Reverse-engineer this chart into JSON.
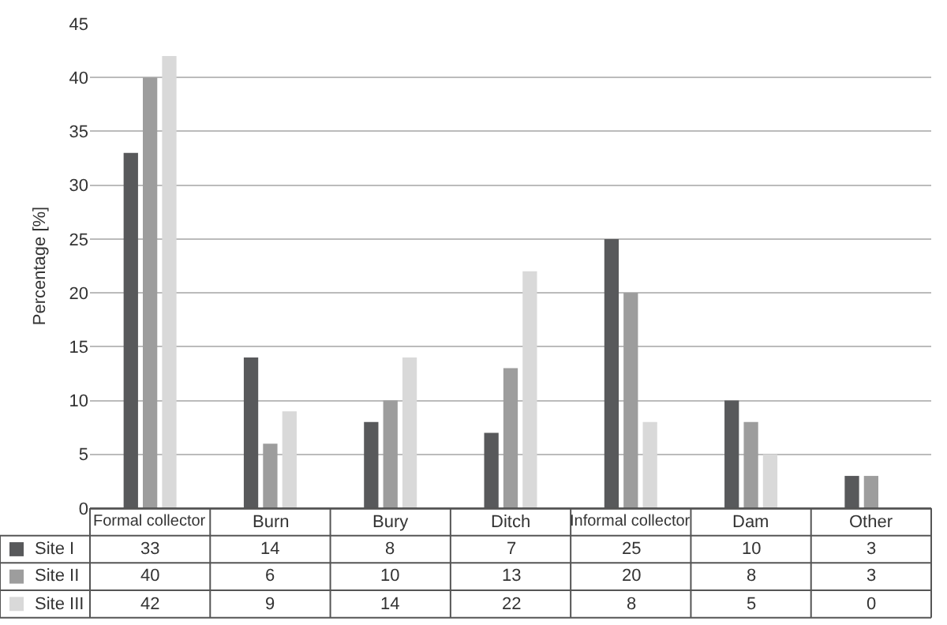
{
  "chart_data": {
    "type": "bar",
    "ylabel": "Percentage [%]",
    "categories": [
      "Formal collector",
      "Burn",
      "Bury",
      "Ditch",
      "Informal collector",
      "Dam",
      "Other"
    ],
    "series": [
      {
        "name": "Site I",
        "color": "#58595b",
        "values": [
          33,
          14,
          8,
          7,
          25,
          10,
          3
        ]
      },
      {
        "name": "Site II",
        "color": "#9d9d9d",
        "values": [
          40,
          6,
          10,
          13,
          20,
          8,
          3
        ]
      },
      {
        "name": "Site III",
        "color": "#d9d9d9",
        "values": [
          42,
          9,
          14,
          22,
          8,
          5,
          0
        ]
      }
    ],
    "ylim": [
      0,
      45
    ],
    "yticks": [
      0,
      5,
      10,
      15,
      20,
      25,
      30,
      35,
      40,
      45
    ],
    "grid": "y",
    "legend": "bottom left",
    "data_labels": true
  }
}
